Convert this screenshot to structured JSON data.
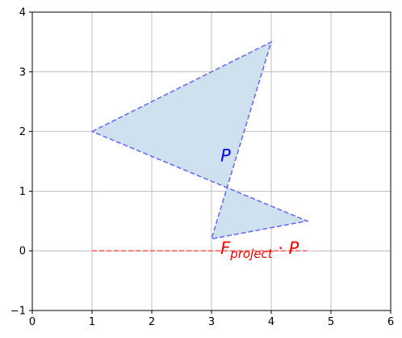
{
  "chart_data": {
    "type": "line",
    "title": "",
    "xlabel": "",
    "ylabel": "",
    "xlim": [
      0,
      6
    ],
    "ylim": [
      -1,
      4
    ],
    "grid": true,
    "x_ticks": [
      "0",
      "1",
      "2",
      "3",
      "4",
      "5",
      "6"
    ],
    "y_ticks": [
      "−1",
      "0",
      "1",
      "2",
      "3",
      "4"
    ],
    "series": [
      {
        "kind": "polygon",
        "points": [
          [
            1,
            2
          ],
          [
            4,
            3.5
          ],
          [
            3,
            0.2
          ],
          [
            4.6,
            0.5
          ],
          [
            1,
            2
          ]
        ],
        "line_color": "#6b6bff",
        "line_style": "dashed",
        "fill_color": "#cfe0ee"
      },
      {
        "kind": "line",
        "points": [
          [
            1,
            0
          ],
          [
            4.6,
            0
          ]
        ],
        "line_color": "#ff6666",
        "line_style": "dashed"
      }
    ],
    "annotations": [
      {
        "base": "P",
        "sub": "",
        "suffix": "",
        "x": 3.15,
        "y": 1.5,
        "color": "#0000ff"
      },
      {
        "base": "F",
        "sub": "project",
        "suffix": " · P",
        "x": 3.15,
        "y": -0.05,
        "color": "#ff0000"
      }
    ]
  }
}
